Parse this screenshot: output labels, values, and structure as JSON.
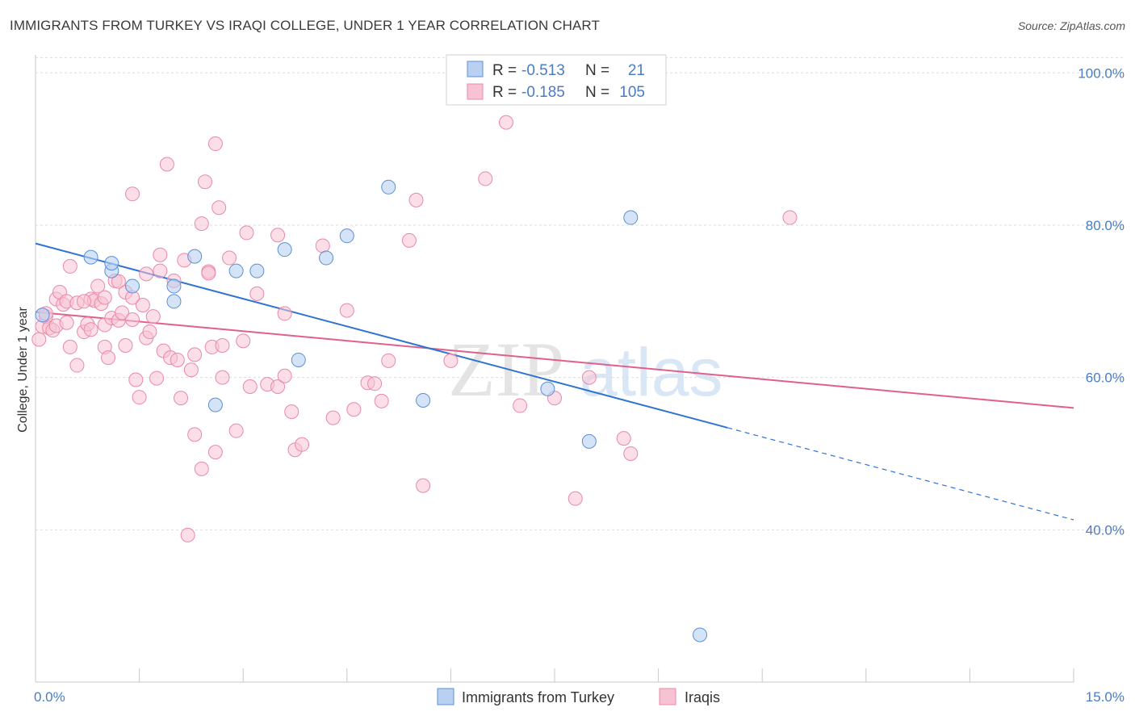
{
  "title": "IMMIGRANTS FROM TURKEY VS IRAQI COLLEGE, UNDER 1 YEAR CORRELATION CHART",
  "source": "Source: ZipAtlas.com",
  "watermark": {
    "zip": "ZIP",
    "atlas": "atlas"
  },
  "colors": {
    "blue": "#5b8fd6",
    "blue_fill": "#b9d0f1",
    "blue_line": "#2f74d0",
    "pink": "#e889a8",
    "pink_fill": "#f7c3d3",
    "pink_line": "#e0608b",
    "axis_text": "#4a7cc4"
  },
  "legend_top": [
    {
      "r_label": "R = ",
      "r_value": "-0.513",
      "n_label": "N = ",
      "n_value": "21"
    },
    {
      "r_label": "R = ",
      "r_value": "-0.185",
      "n_label": "N = ",
      "n_value": "105"
    }
  ],
  "chart_data": {
    "type": "scatter",
    "title": "IMMIGRANTS FROM TURKEY VS IRAQI COLLEGE, UNDER 1 YEAR CORRELATION CHART",
    "xlabel": "",
    "ylabel": "College, Under 1 year",
    "xlim": [
      0,
      15
    ],
    "ylim": [
      20,
      103
    ],
    "x_tick_labels": [
      "0.0%",
      "15.0%"
    ],
    "y_ticks": [
      40,
      60,
      80,
      100
    ],
    "y_tick_labels": [
      "40.0%",
      "60.0%",
      "80.0%",
      "100.0%"
    ],
    "grid": true,
    "legend_position": "bottom",
    "series": [
      {
        "name": "Immigrants from Turkey",
        "color": "#5b8fd6",
        "r": -0.513,
        "n": 21,
        "trend": {
          "x": [
            0.0,
            10.0
          ],
          "y": [
            77.6,
            53.4
          ],
          "dashed_to": [
            15.0,
            41.3
          ]
        },
        "points": [
          [
            0.1,
            68.2
          ],
          [
            0.8,
            75.8
          ],
          [
            1.1,
            74.0
          ],
          [
            1.1,
            75.0
          ],
          [
            1.4,
            72.0
          ],
          [
            2.0,
            72.0
          ],
          [
            2.3,
            75.9
          ],
          [
            2.9,
            74.0
          ],
          [
            3.2,
            74.0
          ],
          [
            3.6,
            76.8
          ],
          [
            3.8,
            62.3
          ],
          [
            4.2,
            75.7
          ],
          [
            4.5,
            78.6
          ],
          [
            5.1,
            85.0
          ],
          [
            5.6,
            57.0
          ],
          [
            7.4,
            58.5
          ],
          [
            8.0,
            51.6
          ],
          [
            8.6,
            81.0
          ],
          [
            2.6,
            56.4
          ],
          [
            2.0,
            70.0
          ],
          [
            9.6,
            26.2
          ]
        ]
      },
      {
        "name": "Iraqis",
        "color": "#e889a8",
        "r": -0.185,
        "n": 105,
        "trend": {
          "x": [
            0.0,
            15.0
          ],
          "y": [
            68.6,
            56.0
          ]
        },
        "points": [
          [
            0.05,
            65.0
          ],
          [
            0.1,
            66.7
          ],
          [
            0.15,
            68.0
          ],
          [
            0.2,
            66.5
          ],
          [
            0.25,
            66.2
          ],
          [
            0.3,
            66.8
          ],
          [
            0.3,
            70.3
          ],
          [
            0.35,
            71.2
          ],
          [
            0.4,
            69.6
          ],
          [
            0.45,
            70.0
          ],
          [
            0.5,
            74.6
          ],
          [
            0.5,
            64.0
          ],
          [
            0.6,
            69.8
          ],
          [
            0.6,
            61.6
          ],
          [
            0.7,
            66.0
          ],
          [
            0.75,
            67.0
          ],
          [
            0.8,
            70.3
          ],
          [
            0.8,
            66.3
          ],
          [
            0.85,
            70.1
          ],
          [
            0.9,
            72.0
          ],
          [
            0.95,
            69.7
          ],
          [
            1.0,
            70.5
          ],
          [
            1.0,
            66.9
          ],
          [
            1.0,
            64.0
          ],
          [
            1.05,
            62.6
          ],
          [
            1.1,
            67.8
          ],
          [
            1.15,
            72.7
          ],
          [
            1.2,
            72.6
          ],
          [
            1.2,
            67.5
          ],
          [
            1.25,
            68.5
          ],
          [
            1.3,
            64.2
          ],
          [
            1.3,
            71.2
          ],
          [
            1.4,
            70.5
          ],
          [
            1.4,
            67.6
          ],
          [
            1.4,
            84.1
          ],
          [
            1.45,
            59.7
          ],
          [
            1.5,
            57.4
          ],
          [
            1.55,
            69.5
          ],
          [
            1.6,
            65.2
          ],
          [
            1.6,
            73.6
          ],
          [
            1.7,
            68.0
          ],
          [
            1.75,
            59.9
          ],
          [
            1.8,
            74.0
          ],
          [
            1.8,
            76.1
          ],
          [
            1.85,
            63.5
          ],
          [
            1.9,
            88.0
          ],
          [
            1.95,
            62.6
          ],
          [
            2.0,
            72.7
          ],
          [
            2.05,
            62.3
          ],
          [
            2.1,
            57.3
          ],
          [
            2.15,
            75.4
          ],
          [
            2.2,
            39.3
          ],
          [
            2.3,
            52.5
          ],
          [
            2.3,
            63.0
          ],
          [
            2.4,
            80.2
          ],
          [
            2.4,
            48.0
          ],
          [
            2.45,
            85.7
          ],
          [
            2.5,
            73.9
          ],
          [
            2.5,
            73.7
          ],
          [
            2.55,
            64.0
          ],
          [
            2.6,
            90.7
          ],
          [
            2.6,
            50.2
          ],
          [
            2.65,
            82.3
          ],
          [
            2.7,
            60.0
          ],
          [
            2.7,
            64.2
          ],
          [
            2.8,
            75.7
          ],
          [
            2.9,
            53.0
          ],
          [
            3.0,
            64.8
          ],
          [
            3.05,
            79.0
          ],
          [
            3.1,
            58.8
          ],
          [
            3.2,
            71.0
          ],
          [
            3.35,
            59.1
          ],
          [
            3.5,
            78.7
          ],
          [
            3.5,
            58.8
          ],
          [
            3.6,
            68.4
          ],
          [
            3.6,
            60.2
          ],
          [
            3.7,
            55.5
          ],
          [
            3.75,
            50.5
          ],
          [
            3.85,
            51.2
          ],
          [
            4.15,
            77.3
          ],
          [
            4.3,
            54.7
          ],
          [
            4.5,
            68.8
          ],
          [
            4.6,
            55.8
          ],
          [
            4.8,
            59.3
          ],
          [
            4.9,
            59.2
          ],
          [
            5.0,
            56.9
          ],
          [
            5.1,
            62.2
          ],
          [
            5.4,
            78.0
          ],
          [
            5.5,
            83.3
          ],
          [
            5.6,
            45.8
          ],
          [
            6.0,
            62.2
          ],
          [
            6.5,
            86.1
          ],
          [
            6.8,
            93.5
          ],
          [
            7.0,
            56.3
          ],
          [
            7.5,
            57.3
          ],
          [
            7.8,
            44.1
          ],
          [
            8.0,
            60.0
          ],
          [
            8.5,
            52.0
          ],
          [
            8.6,
            50.0
          ],
          [
            10.9,
            81.0
          ],
          [
            0.15,
            68.4
          ],
          [
            0.45,
            67.2
          ],
          [
            1.65,
            66.0
          ],
          [
            2.25,
            61.0
          ],
          [
            0.7,
            70.0
          ]
        ]
      }
    ]
  },
  "bottom_legend": [
    {
      "label": "Immigrants from Turkey"
    },
    {
      "label": "Iraqis"
    }
  ]
}
